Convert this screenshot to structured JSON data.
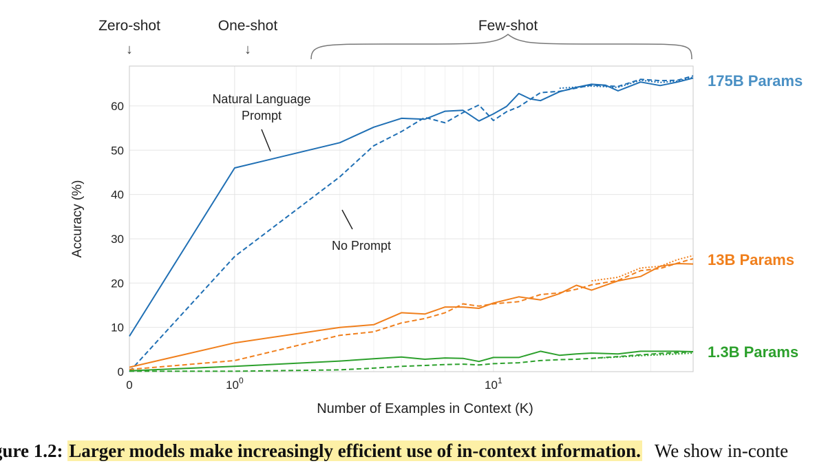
{
  "chart_data": {
    "type": "line",
    "xlabel": "Number of Examples in Context  (K)",
    "ylabel": "Accuracy (%)",
    "x_scale": "symlog",
    "xlim": [
      0,
      40
    ],
    "ylim": [
      0,
      69
    ],
    "yticks": [
      0,
      10,
      20,
      30,
      40,
      50,
      60
    ],
    "xtick_labels": [
      {
        "value": 0,
        "label": "0"
      },
      {
        "value": 1,
        "label": "10",
        "exp": "0"
      },
      {
        "value": 10,
        "label": "10",
        "exp": "1"
      }
    ],
    "grid": true,
    "regime_labels": [
      {
        "label": "Zero-shot",
        "arrow": "↓"
      },
      {
        "label": "One-shot",
        "arrow": "↓"
      },
      {
        "label": "Few-shot"
      }
    ],
    "annotations": [
      {
        "lines": [
          "Natural Language",
          "Prompt"
        ]
      },
      {
        "lines": [
          "No Prompt"
        ]
      }
    ],
    "series_labels": [
      {
        "text": "175B Params",
        "color": "#4a90c4"
      },
      {
        "text": "13B Params",
        "color": "#f07f1c"
      },
      {
        "text": "1.3B Params",
        "color": "#2ca02c"
      }
    ],
    "series": [
      {
        "model": "175B Params",
        "style": "solid",
        "color": "#1f6fb4",
        "x": [
          0,
          1,
          3,
          4,
          5,
          6,
          7,
          8,
          9,
          10,
          11,
          12,
          13,
          14,
          16,
          18,
          20,
          22,
          24,
          28,
          32,
          36,
          40
        ],
        "y": [
          8,
          46,
          51.7,
          55.2,
          57.2,
          57,
          58.8,
          59,
          56.6,
          58.2,
          59.9,
          62.8,
          61.6,
          61.2,
          63.2,
          64.2,
          64.9,
          64.7,
          63.4,
          65.4,
          64.6,
          65.4,
          66.3
        ]
      },
      {
        "model": "175B Params",
        "style": "dashed",
        "color": "#1f6fb4",
        "x": [
          0,
          1,
          3,
          4,
          5,
          6,
          7,
          8,
          9,
          10,
          11,
          12,
          14,
          16,
          20,
          24,
          28,
          32,
          36,
          40
        ],
        "y": [
          0,
          26,
          44,
          51,
          54.2,
          57.4,
          56.2,
          58.5,
          60.2,
          56.7,
          58.7,
          59.8,
          63,
          63.3,
          64.7,
          64.4,
          66,
          65.7,
          65.8,
          66.8
        ]
      },
      {
        "model": "175B Params",
        "style": "dotted",
        "color": "#1f6fb4",
        "x": [
          16,
          20,
          24,
          28,
          32,
          36,
          40
        ],
        "y": [
          64,
          64.5,
          64.2,
          65.8,
          65.3,
          65.6,
          66.5
        ]
      },
      {
        "model": "13B Params",
        "style": "solid",
        "color": "#f07f1c",
        "x": [
          0,
          1,
          3,
          4,
          5,
          6,
          7,
          8,
          9,
          10,
          12,
          14,
          16,
          18,
          20,
          24,
          28,
          32,
          36,
          40
        ],
        "y": [
          1,
          6.5,
          10,
          10.6,
          13.3,
          13,
          14.6,
          14.6,
          14.3,
          15.5,
          16.9,
          16.2,
          17.6,
          19.5,
          18.4,
          20.5,
          21.5,
          23.8,
          24.4,
          24.3
        ]
      },
      {
        "model": "13B Params",
        "style": "dashed",
        "color": "#f07f1c",
        "x": [
          0,
          1,
          3,
          4,
          5,
          6,
          7,
          8,
          9,
          10,
          12,
          14,
          16,
          18,
          20,
          24,
          28,
          32,
          36,
          40
        ],
        "y": [
          0.5,
          2.5,
          8.2,
          9,
          11,
          12,
          13.3,
          15.3,
          14.8,
          15.3,
          15.8,
          17.4,
          17.8,
          18.6,
          19.6,
          20.6,
          22.8,
          23.3,
          24.5,
          25.5
        ]
      },
      {
        "model": "13B Params",
        "style": "dotted",
        "color": "#f07f1c",
        "x": [
          20,
          24,
          28,
          32,
          36,
          40
        ],
        "y": [
          20.5,
          21.3,
          23.4,
          23.8,
          25.3,
          26.2
        ]
      },
      {
        "model": "1.3B Params",
        "style": "solid",
        "color": "#2ca02c",
        "x": [
          0,
          1,
          3,
          4,
          5,
          6,
          7,
          8,
          9,
          10,
          12,
          14,
          16,
          18,
          20,
          24,
          28,
          32,
          36,
          40
        ],
        "y": [
          0.2,
          1.2,
          2.4,
          2.9,
          3.3,
          2.8,
          3.1,
          3,
          2.3,
          3.2,
          3.2,
          4.6,
          3.7,
          4,
          4.2,
          4,
          4.6,
          4.6,
          4.6,
          4.5
        ]
      },
      {
        "model": "1.3B Params",
        "style": "dashed",
        "color": "#2ca02c",
        "x": [
          0,
          1,
          3,
          4,
          5,
          6,
          7,
          8,
          9,
          10,
          12,
          14,
          16,
          18,
          20,
          24,
          28,
          32,
          36,
          40
        ],
        "y": [
          0.1,
          0.1,
          0.4,
          0.8,
          1.2,
          1.4,
          1.6,
          1.7,
          1.5,
          1.8,
          2.0,
          2.5,
          2.7,
          2.8,
          3.0,
          3.4,
          3.8,
          4.1,
          4.3,
          4.5
        ]
      },
      {
        "model": "1.3B Params",
        "style": "dotted",
        "color": "#2ca02c",
        "x": [
          20,
          24,
          28,
          32,
          36,
          40
        ],
        "y": [
          3.0,
          3.3,
          3.6,
          3.8,
          4.0,
          4.2
        ]
      }
    ]
  },
  "caption": {
    "figure_label": "gure 1.2:",
    "highlight": "Larger models make increasingly efficient use of in-context information.",
    "rest": "We show in-conte"
  }
}
